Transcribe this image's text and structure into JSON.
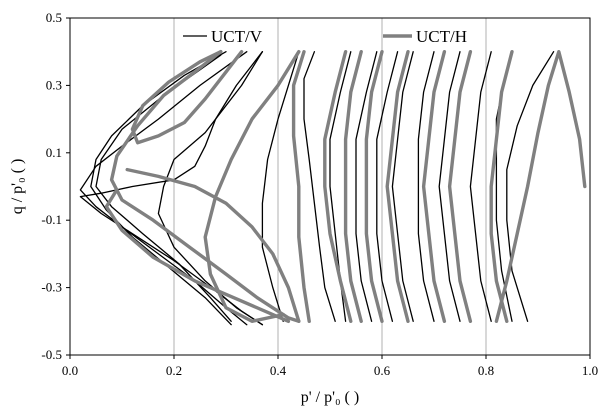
{
  "chart_data": {
    "type": "line",
    "title": "",
    "xlabel": "p' / p'₀ ( )",
    "ylabel": "q / p'₀ ( )",
    "xlim": [
      0.0,
      1.0
    ],
    "ylim": [
      -0.5,
      0.5
    ],
    "xticks": [
      "0.0",
      "0.2",
      "0.4",
      "0.6",
      "0.8",
      "1.0"
    ],
    "yticks": [
      "0.5",
      "0.3",
      "0.1",
      "-0.1",
      "-0.3",
      "-0.5"
    ],
    "grid": "vertical",
    "legend": "top",
    "series": [
      {
        "name": "UCT/V",
        "color": "#000000",
        "cycles": [
          [
            [
              0.37,
              0.4
            ],
            [
              0.32,
              0.3
            ],
            [
              0.28,
              0.2
            ],
            [
              0.26,
              0.12
            ],
            [
              0.24,
              0.06
            ],
            [
              0.2,
              0.02
            ],
            [
              0.12,
              0.0
            ],
            [
              0.06,
              -0.02
            ],
            [
              0.02,
              -0.03
            ],
            [
              0.06,
              -0.08
            ],
            [
              0.12,
              -0.14
            ],
            [
              0.2,
              -0.22
            ],
            [
              0.28,
              -0.31
            ],
            [
              0.33,
              -0.37
            ],
            [
              0.37,
              -0.41
            ]
          ],
          [
            [
              0.34,
              0.4
            ],
            [
              0.25,
              0.3
            ],
            [
              0.17,
              0.2
            ],
            [
              0.1,
              0.12
            ],
            [
              0.05,
              0.06
            ],
            [
              0.02,
              -0.01
            ],
            [
              0.05,
              -0.06
            ],
            [
              0.1,
              -0.12
            ],
            [
              0.17,
              -0.2
            ],
            [
              0.24,
              -0.28
            ],
            [
              0.3,
              -0.36
            ],
            [
              0.34,
              -0.41
            ]
          ],
          [
            [
              0.3,
              0.4
            ],
            [
              0.22,
              0.33
            ],
            [
              0.14,
              0.24
            ],
            [
              0.08,
              0.15
            ],
            [
              0.05,
              0.08
            ],
            [
              0.04,
              0.0
            ],
            [
              0.07,
              -0.07
            ],
            [
              0.12,
              -0.15
            ],
            [
              0.19,
              -0.24
            ],
            [
              0.26,
              -0.33
            ],
            [
              0.31,
              -0.41
            ]
          ],
          [
            [
              0.29,
              0.39
            ],
            [
              0.18,
              0.27
            ],
            [
              0.1,
              0.17
            ],
            [
              0.06,
              0.08
            ],
            [
              0.05,
              0.0
            ],
            [
              0.08,
              -0.06
            ],
            [
              0.14,
              -0.14
            ],
            [
              0.21,
              -0.23
            ],
            [
              0.27,
              -0.33
            ],
            [
              0.31,
              -0.4
            ]
          ],
          [
            [
              0.37,
              0.4
            ],
            [
              0.33,
              0.3
            ],
            [
              0.26,
              0.16
            ],
            [
              0.2,
              0.08
            ],
            [
              0.18,
              0.0
            ],
            [
              0.17,
              -0.08
            ],
            [
              0.2,
              -0.18
            ],
            [
              0.26,
              -0.28
            ],
            [
              0.32,
              -0.36
            ],
            [
              0.37,
              -0.41
            ]
          ],
          [
            [
              0.44,
              0.4
            ],
            [
              0.42,
              0.3
            ],
            [
              0.4,
              0.2
            ],
            [
              0.38,
              0.08
            ],
            [
              0.37,
              -0.05
            ],
            [
              0.37,
              -0.18
            ],
            [
              0.39,
              -0.3
            ],
            [
              0.41,
              -0.4
            ]
          ],
          [
            [
              0.47,
              0.4
            ],
            [
              0.45,
              0.32
            ],
            [
              0.45,
              0.2
            ],
            [
              0.46,
              0.08
            ],
            [
              0.47,
              -0.05
            ],
            [
              0.48,
              -0.18
            ],
            [
              0.49,
              -0.3
            ],
            [
              0.51,
              -0.4
            ]
          ],
          [
            [
              0.54,
              0.4
            ],
            [
              0.52,
              0.28
            ],
            [
              0.5,
              0.14
            ],
            [
              0.5,
              0.0
            ],
            [
              0.51,
              -0.14
            ],
            [
              0.52,
              -0.28
            ],
            [
              0.53,
              -0.4
            ]
          ],
          [
            [
              0.59,
              0.4
            ],
            [
              0.57,
              0.28
            ],
            [
              0.55,
              0.14
            ],
            [
              0.55,
              0.0
            ],
            [
              0.55,
              -0.14
            ],
            [
              0.56,
              -0.28
            ],
            [
              0.58,
              -0.4
            ]
          ],
          [
            [
              0.63,
              0.4
            ],
            [
              0.61,
              0.28
            ],
            [
              0.59,
              0.14
            ],
            [
              0.59,
              0.0
            ],
            [
              0.59,
              -0.14
            ],
            [
              0.6,
              -0.28
            ],
            [
              0.62,
              -0.4
            ]
          ],
          [
            [
              0.66,
              0.4
            ],
            [
              0.64,
              0.28
            ],
            [
              0.63,
              0.14
            ],
            [
              0.62,
              0.0
            ],
            [
              0.63,
              -0.14
            ],
            [
              0.64,
              -0.28
            ],
            [
              0.66,
              -0.4
            ]
          ],
          [
            [
              0.7,
              0.4
            ],
            [
              0.68,
              0.28
            ],
            [
              0.67,
              0.14
            ],
            [
              0.67,
              0.0
            ],
            [
              0.67,
              -0.14
            ],
            [
              0.68,
              -0.28
            ],
            [
              0.7,
              -0.4
            ]
          ],
          [
            [
              0.75,
              0.4
            ],
            [
              0.73,
              0.28
            ],
            [
              0.72,
              0.14
            ],
            [
              0.71,
              0.0
            ],
            [
              0.72,
              -0.14
            ],
            [
              0.73,
              -0.28
            ],
            [
              0.75,
              -0.4
            ]
          ],
          [
            [
              0.81,
              0.4
            ],
            [
              0.79,
              0.28
            ],
            [
              0.78,
              0.14
            ],
            [
              0.77,
              0.0
            ],
            [
              0.78,
              -0.14
            ],
            [
              0.79,
              -0.28
            ],
            [
              0.81,
              -0.4
            ]
          ],
          [
            [
              0.84,
              0.35
            ],
            [
              0.82,
              0.2
            ],
            [
              0.82,
              0.05
            ],
            [
              0.82,
              -0.1
            ],
            [
              0.83,
              -0.25
            ],
            [
              0.85,
              -0.4
            ]
          ],
          [
            [
              0.93,
              0.4
            ],
            [
              0.89,
              0.3
            ],
            [
              0.86,
              0.18
            ],
            [
              0.84,
              0.05
            ],
            [
              0.84,
              -0.1
            ],
            [
              0.85,
              -0.25
            ],
            [
              0.88,
              -0.4
            ]
          ]
        ]
      },
      {
        "name": "UCT/H",
        "color": "#808080",
        "cycles": [
          [
            [
              0.33,
              0.4
            ],
            [
              0.3,
              0.34
            ],
            [
              0.26,
              0.26
            ],
            [
              0.22,
              0.19
            ],
            [
              0.17,
              0.15
            ],
            [
              0.13,
              0.13
            ],
            [
              0.12,
              0.17
            ],
            [
              0.14,
              0.24
            ],
            [
              0.19,
              0.31
            ],
            [
              0.25,
              0.37
            ],
            [
              0.29,
              0.4
            ]
          ],
          [
            [
              0.29,
              0.4
            ],
            [
              0.24,
              0.34
            ],
            [
              0.18,
              0.27
            ],
            [
              0.13,
              0.18
            ],
            [
              0.09,
              0.09
            ],
            [
              0.08,
              0.02
            ],
            [
              0.1,
              -0.04
            ],
            [
              0.16,
              -0.1
            ],
            [
              0.23,
              -0.18
            ],
            [
              0.3,
              -0.26
            ],
            [
              0.36,
              -0.33
            ],
            [
              0.42,
              -0.39
            ],
            [
              0.44,
              -0.4
            ]
          ],
          [
            [
              0.11,
              0.05
            ],
            [
              0.17,
              0.03
            ],
            [
              0.24,
              0.0
            ],
            [
              0.3,
              -0.05
            ],
            [
              0.35,
              -0.12
            ],
            [
              0.39,
              -0.2
            ],
            [
              0.42,
              -0.3
            ],
            [
              0.44,
              -0.4
            ]
          ],
          [
            [
              0.42,
              -0.4
            ],
            [
              0.33,
              -0.34
            ],
            [
              0.24,
              -0.28
            ],
            [
              0.16,
              -0.21
            ],
            [
              0.1,
              -0.13
            ],
            [
              0.07,
              -0.06
            ],
            [
              0.09,
              -0.01
            ]
          ],
          [
            [
              0.44,
              0.4
            ],
            [
              0.4,
              0.3
            ],
            [
              0.35,
              0.2
            ],
            [
              0.31,
              0.08
            ],
            [
              0.28,
              -0.03
            ],
            [
              0.26,
              -0.15
            ],
            [
              0.27,
              -0.26
            ],
            [
              0.3,
              -0.36
            ],
            [
              0.35,
              -0.4
            ],
            [
              0.41,
              -0.38
            ]
          ],
          [
            [
              0.45,
              0.4
            ],
            [
              0.43,
              0.3
            ],
            [
              0.43,
              0.15
            ],
            [
              0.44,
              0.0
            ],
            [
              0.44,
              -0.15
            ],
            [
              0.45,
              -0.3
            ],
            [
              0.46,
              -0.4
            ]
          ],
          [
            [
              0.53,
              0.4
            ],
            [
              0.51,
              0.28
            ],
            [
              0.49,
              0.14
            ],
            [
              0.49,
              0.0
            ],
            [
              0.5,
              -0.14
            ],
            [
              0.52,
              -0.28
            ],
            [
              0.54,
              -0.4
            ]
          ],
          [
            [
              0.56,
              0.4
            ],
            [
              0.54,
              0.28
            ],
            [
              0.53,
              0.14
            ],
            [
              0.53,
              0.0
            ],
            [
              0.53,
              -0.14
            ],
            [
              0.54,
              -0.28
            ],
            [
              0.56,
              -0.4
            ]
          ],
          [
            [
              0.6,
              0.4
            ],
            [
              0.58,
              0.28
            ],
            [
              0.57,
              0.14
            ],
            [
              0.57,
              0.0
            ],
            [
              0.57,
              -0.14
            ],
            [
              0.58,
              -0.28
            ],
            [
              0.6,
              -0.4
            ]
          ],
          [
            [
              0.65,
              0.4
            ],
            [
              0.63,
              0.28
            ],
            [
              0.62,
              0.14
            ],
            [
              0.61,
              0.0
            ],
            [
              0.62,
              -0.14
            ],
            [
              0.63,
              -0.28
            ],
            [
              0.65,
              -0.4
            ]
          ],
          [
            [
              0.72,
              0.4
            ],
            [
              0.7,
              0.28
            ],
            [
              0.69,
              0.14
            ],
            [
              0.68,
              0.0
            ],
            [
              0.69,
              -0.14
            ],
            [
              0.7,
              -0.28
            ],
            [
              0.72,
              -0.4
            ]
          ],
          [
            [
              0.77,
              0.4
            ],
            [
              0.75,
              0.28
            ],
            [
              0.74,
              0.14
            ],
            [
              0.73,
              0.0
            ],
            [
              0.74,
              -0.14
            ],
            [
              0.75,
              -0.28
            ],
            [
              0.77,
              -0.4
            ]
          ],
          [
            [
              0.85,
              0.4
            ],
            [
              0.83,
              0.28
            ],
            [
              0.82,
              0.14
            ],
            [
              0.81,
              0.0
            ],
            [
              0.81,
              -0.14
            ],
            [
              0.82,
              -0.28
            ],
            [
              0.84,
              -0.4
            ]
          ],
          [
            [
              0.99,
              0.0
            ],
            [
              0.98,
              0.14
            ],
            [
              0.96,
              0.28
            ],
            [
              0.94,
              0.4
            ],
            [
              0.92,
              0.3
            ],
            [
              0.9,
              0.16
            ],
            [
              0.88,
              0.0
            ],
            [
              0.86,
              -0.14
            ],
            [
              0.84,
              -0.28
            ],
            [
              0.82,
              -0.4
            ]
          ]
        ]
      }
    ]
  }
}
